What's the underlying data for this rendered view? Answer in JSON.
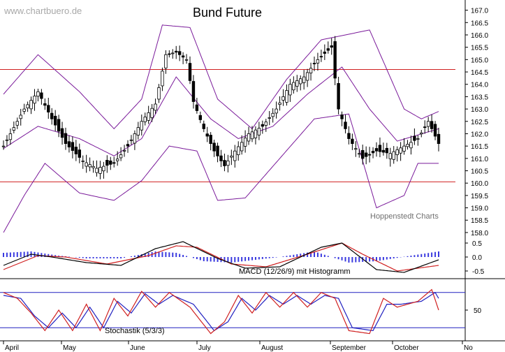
{
  "chart_data": [
    {
      "type": "candlestick",
      "title": "Bund Future",
      "watermark": "www.chartbuero.de",
      "credit": "Hoppenstedt Charts",
      "yticks": [
        "167.0",
        "166.5",
        "166.0",
        "165.5",
        "165.0",
        "164.5",
        "164.0",
        "163.5",
        "163.0",
        "162.5",
        "162.0",
        "161.5",
        "161.0",
        "160.5",
        "160.0",
        "159.5",
        "159.0",
        "158.5",
        "158.0"
      ],
      "ylim": [
        157.8,
        167.3
      ],
      "xticks": [
        "April",
        "May",
        "June",
        "July",
        "August",
        "September",
        "October",
        "No"
      ],
      "horizontal_lines": [
        {
          "value": 164.6,
          "color": "#d02020"
        },
        {
          "value": 160.05,
          "color": "#d02020"
        }
      ],
      "close_approx": [
        {
          "t": 0,
          "v": 161.5
        },
        {
          "t": 6,
          "v": 163.0
        },
        {
          "t": 10,
          "v": 163.7
        },
        {
          "t": 14,
          "v": 162.6
        },
        {
          "t": 18,
          "v": 161.6
        },
        {
          "t": 23,
          "v": 160.9
        },
        {
          "t": 27,
          "v": 160.6
        },
        {
          "t": 32,
          "v": 160.8
        },
        {
          "t": 36,
          "v": 161.5
        },
        {
          "t": 40,
          "v": 162.5
        },
        {
          "t": 44,
          "v": 163.2
        },
        {
          "t": 47,
          "v": 165.2
        },
        {
          "t": 50,
          "v": 165.3
        },
        {
          "t": 53,
          "v": 165.0
        },
        {
          "t": 55,
          "v": 163.3
        },
        {
          "t": 58,
          "v": 162.2
        },
        {
          "t": 61,
          "v": 161.3
        },
        {
          "t": 64,
          "v": 160.7
        },
        {
          "t": 67,
          "v": 161.3
        },
        {
          "t": 71,
          "v": 162.0
        },
        {
          "t": 75,
          "v": 162.3
        },
        {
          "t": 79,
          "v": 163.0
        },
        {
          "t": 83,
          "v": 164.0
        },
        {
          "t": 87,
          "v": 164.3
        },
        {
          "t": 91,
          "v": 165.0
        },
        {
          "t": 95,
          "v": 165.5
        },
        {
          "t": 97,
          "v": 163.0
        },
        {
          "t": 100,
          "v": 161.8
        },
        {
          "t": 104,
          "v": 161.0
        },
        {
          "t": 108,
          "v": 161.3
        },
        {
          "t": 112,
          "v": 161.2
        },
        {
          "t": 116,
          "v": 161.5
        },
        {
          "t": 120,
          "v": 161.8
        },
        {
          "t": 123,
          "v": 162.5
        },
        {
          "t": 126,
          "v": 161.6
        }
      ],
      "bollinger_upper_approx": [
        {
          "t": 0,
          "v": 163.6
        },
        {
          "t": 10,
          "v": 165.2
        },
        {
          "t": 22,
          "v": 163.7
        },
        {
          "t": 32,
          "v": 162.2
        },
        {
          "t": 40,
          "v": 163.4
        },
        {
          "t": 46,
          "v": 166.4
        },
        {
          "t": 54,
          "v": 166.3
        },
        {
          "t": 62,
          "v": 163.4
        },
        {
          "t": 72,
          "v": 162.2
        },
        {
          "t": 82,
          "v": 164.2
        },
        {
          "t": 92,
          "v": 165.8
        },
        {
          "t": 106,
          "v": 166.2
        },
        {
          "t": 116,
          "v": 163.0
        },
        {
          "t": 121,
          "v": 162.6
        },
        {
          "t": 126,
          "v": 162.9
        }
      ],
      "bollinger_middle_approx": [
        {
          "t": 0,
          "v": 161.4
        },
        {
          "t": 10,
          "v": 162.3
        },
        {
          "t": 22,
          "v": 161.8
        },
        {
          "t": 32,
          "v": 161.1
        },
        {
          "t": 40,
          "v": 161.8
        },
        {
          "t": 50,
          "v": 164.3
        },
        {
          "t": 60,
          "v": 162.6
        },
        {
          "t": 68,
          "v": 161.8
        },
        {
          "t": 78,
          "v": 162.3
        },
        {
          "t": 88,
          "v": 163.6
        },
        {
          "t": 98,
          "v": 164.7
        },
        {
          "t": 106,
          "v": 163.0
        },
        {
          "t": 114,
          "v": 161.7
        },
        {
          "t": 126,
          "v": 162.2
        }
      ],
      "bollinger_lower_approx": [
        {
          "t": 0,
          "v": 158.0
        },
        {
          "t": 6,
          "v": 159.5
        },
        {
          "t": 12,
          "v": 160.8
        },
        {
          "t": 22,
          "v": 159.6
        },
        {
          "t": 32,
          "v": 159.3
        },
        {
          "t": 40,
          "v": 160.1
        },
        {
          "t": 48,
          "v": 161.5
        },
        {
          "t": 56,
          "v": 161.3
        },
        {
          "t": 62,
          "v": 159.3
        },
        {
          "t": 70,
          "v": 159.4
        },
        {
          "t": 80,
          "v": 161.0
        },
        {
          "t": 90,
          "v": 162.6
        },
        {
          "t": 100,
          "v": 162.8
        },
        {
          "t": 108,
          "v": 159.0
        },
        {
          "t": 116,
          "v": 159.5
        },
        {
          "t": 120,
          "v": 160.8
        },
        {
          "t": 126,
          "v": 160.8
        }
      ]
    },
    {
      "type": "line",
      "label": "MACD (12/26/9) mit Histogramm",
      "yticks": [
        "0.5",
        "0.0",
        "-0.5"
      ],
      "ylim": [
        -0.75,
        0.65
      ],
      "macd_approx": [
        {
          "t": 0,
          "v": -0.3
        },
        {
          "t": 8,
          "v": 0.1
        },
        {
          "t": 14,
          "v": 0.0
        },
        {
          "t": 24,
          "v": -0.2
        },
        {
          "t": 34,
          "v": -0.3
        },
        {
          "t": 44,
          "v": 0.3
        },
        {
          "t": 52,
          "v": 0.55
        },
        {
          "t": 62,
          "v": -0.05
        },
        {
          "t": 70,
          "v": -0.4
        },
        {
          "t": 80,
          "v": -0.35
        },
        {
          "t": 92,
          "v": 0.35
        },
        {
          "t": 98,
          "v": 0.5
        },
        {
          "t": 108,
          "v": -0.45
        },
        {
          "t": 116,
          "v": -0.55
        },
        {
          "t": 126,
          "v": -0.1
        }
      ],
      "signal_approx": [
        {
          "t": 0,
          "v": -0.45
        },
        {
          "t": 10,
          "v": 0.05
        },
        {
          "t": 18,
          "v": 0.0
        },
        {
          "t": 30,
          "v": -0.25
        },
        {
          "t": 42,
          "v": 0.05
        },
        {
          "t": 50,
          "v": 0.4
        },
        {
          "t": 56,
          "v": 0.35
        },
        {
          "t": 66,
          "v": -0.25
        },
        {
          "t": 76,
          "v": -0.35
        },
        {
          "t": 88,
          "v": 0.1
        },
        {
          "t": 98,
          "v": 0.5
        },
        {
          "t": 104,
          "v": 0.1
        },
        {
          "t": 114,
          "v": -0.5
        },
        {
          "t": 126,
          "v": -0.3
        }
      ],
      "histogram_approx": [
        {
          "t": 0,
          "v": 0.15
        },
        {
          "t": 8,
          "v": 0.2
        },
        {
          "t": 16,
          "v": 0.05
        },
        {
          "t": 24,
          "v": -0.05
        },
        {
          "t": 34,
          "v": -0.05
        },
        {
          "t": 44,
          "v": 0.2
        },
        {
          "t": 50,
          "v": 0.15
        },
        {
          "t": 58,
          "v": -0.15
        },
        {
          "t": 66,
          "v": -0.2
        },
        {
          "t": 80,
          "v": 0.0
        },
        {
          "t": 90,
          "v": 0.2
        },
        {
          "t": 100,
          "v": -0.2
        },
        {
          "t": 108,
          "v": -0.15
        },
        {
          "t": 118,
          "v": 0.05
        },
        {
          "t": 126,
          "v": 0.2
        }
      ]
    },
    {
      "type": "line",
      "label": "Stochastik (5/3/3)",
      "yticks": [
        "50"
      ],
      "ylim": [
        0,
        100
      ],
      "levels": [
        80,
        20
      ],
      "k_approx": [
        {
          "t": 0,
          "v": 80
        },
        {
          "t": 4,
          "v": 70
        },
        {
          "t": 8,
          "v": 45
        },
        {
          "t": 12,
          "v": 15
        },
        {
          "t": 16,
          "v": 50
        },
        {
          "t": 20,
          "v": 15
        },
        {
          "t": 24,
          "v": 60
        },
        {
          "t": 28,
          "v": 15
        },
        {
          "t": 32,
          "v": 70
        },
        {
          "t": 36,
          "v": 40
        },
        {
          "t": 40,
          "v": 82
        },
        {
          "t": 44,
          "v": 55
        },
        {
          "t": 48,
          "v": 80
        },
        {
          "t": 54,
          "v": 55
        },
        {
          "t": 60,
          "v": 10
        },
        {
          "t": 64,
          "v": 30
        },
        {
          "t": 68,
          "v": 75
        },
        {
          "t": 72,
          "v": 45
        },
        {
          "t": 76,
          "v": 80
        },
        {
          "t": 80,
          "v": 55
        },
        {
          "t": 84,
          "v": 80
        },
        {
          "t": 88,
          "v": 55
        },
        {
          "t": 92,
          "v": 80
        },
        {
          "t": 96,
          "v": 70
        },
        {
          "t": 100,
          "v": 15
        },
        {
          "t": 106,
          "v": 10
        },
        {
          "t": 110,
          "v": 70
        },
        {
          "t": 114,
          "v": 55
        },
        {
          "t": 120,
          "v": 65
        },
        {
          "t": 124,
          "v": 85
        },
        {
          "t": 126,
          "v": 50
        }
      ],
      "d_approx": [
        {
          "t": 0,
          "v": 75
        },
        {
          "t": 5,
          "v": 70
        },
        {
          "t": 9,
          "v": 40
        },
        {
          "t": 13,
          "v": 20
        },
        {
          "t": 17,
          "v": 45
        },
        {
          "t": 21,
          "v": 20
        },
        {
          "t": 25,
          "v": 55
        },
        {
          "t": 29,
          "v": 20
        },
        {
          "t": 33,
          "v": 65
        },
        {
          "t": 37,
          "v": 45
        },
        {
          "t": 41,
          "v": 78
        },
        {
          "t": 45,
          "v": 60
        },
        {
          "t": 49,
          "v": 75
        },
        {
          "t": 55,
          "v": 60
        },
        {
          "t": 61,
          "v": 15
        },
        {
          "t": 65,
          "v": 30
        },
        {
          "t": 69,
          "v": 70
        },
        {
          "t": 73,
          "v": 50
        },
        {
          "t": 77,
          "v": 75
        },
        {
          "t": 81,
          "v": 60
        },
        {
          "t": 85,
          "v": 75
        },
        {
          "t": 89,
          "v": 60
        },
        {
          "t": 93,
          "v": 75
        },
        {
          "t": 97,
          "v": 70
        },
        {
          "t": 101,
          "v": 20
        },
        {
          "t": 107,
          "v": 15
        },
        {
          "t": 111,
          "v": 60
        },
        {
          "t": 115,
          "v": 60
        },
        {
          "t": 121,
          "v": 65
        },
        {
          "t": 125,
          "v": 80
        },
        {
          "t": 126,
          "v": 70
        }
      ]
    }
  ]
}
